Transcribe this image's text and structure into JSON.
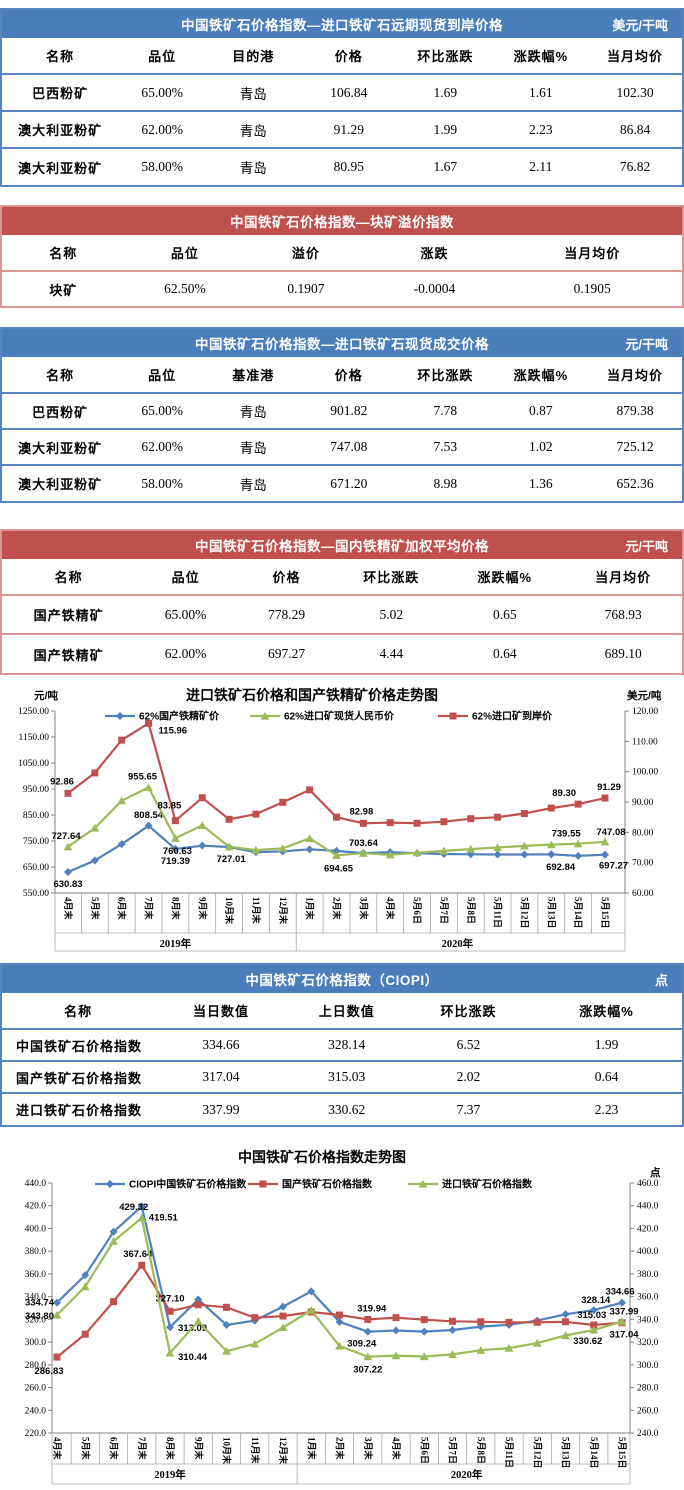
{
  "colors": {
    "blue_header": "#4A7EBB",
    "blue_border": "#5586BE",
    "red_header": "#C0504D",
    "red_border": "#D99694",
    "line_blue": "#4F81BD",
    "line_green": "#9BBB59",
    "line_red": "#C0504D",
    "label_green": "#00B050",
    "label_red": "#FF0000"
  },
  "tables": [
    {
      "theme": "blue",
      "title": "中国铁矿石价格指数—进口铁矿石远期现货到岸价格",
      "unit": "美元/干吨",
      "columns": [
        "名称",
        "品位",
        "目的港",
        "价格",
        "环比涨跌",
        "涨跌幅%",
        "当月均价"
      ],
      "rows": [
        [
          "巴西粉矿",
          "65.00%",
          "青岛",
          "106.84",
          "1.69",
          "1.61",
          "102.30"
        ],
        [
          "澳大利亚粉矿",
          "62.00%",
          "青岛",
          "91.29",
          "1.99",
          "2.23",
          "86.84"
        ],
        [
          "澳大利亚粉矿",
          "58.00%",
          "青岛",
          "80.95",
          "1.67",
          "2.11",
          "76.82"
        ]
      ]
    },
    {
      "theme": "red",
      "title": "中国铁矿石价格指数—块矿溢价指数",
      "unit": "",
      "columns": [
        "名称",
        "品位",
        "溢价",
        "涨跌",
        "当月均价"
      ],
      "rows": [
        [
          "块矿",
          "62.50%",
          "0.1907",
          "-0.0004",
          "0.1905"
        ]
      ]
    },
    {
      "theme": "blue",
      "title": "中国铁矿石价格指数—进口铁矿石现货成交价格",
      "unit": "元/干吨",
      "columns": [
        "名称",
        "品位",
        "基准港",
        "价格",
        "环比涨跌",
        "涨跌幅%",
        "当月均价"
      ],
      "rows": [
        [
          "巴西粉矿",
          "65.00%",
          "青岛",
          "901.82",
          "7.78",
          "0.87",
          "879.38"
        ],
        [
          "澳大利亚粉矿",
          "62.00%",
          "青岛",
          "747.08",
          "7.53",
          "1.02",
          "725.12"
        ],
        [
          "澳大利亚粉矿",
          "58.00%",
          "青岛",
          "671.20",
          "8.98",
          "1.36",
          "652.36"
        ]
      ]
    },
    {
      "theme": "red",
      "title": "中国铁矿石价格指数—国内铁精矿加权平均价格",
      "unit": "元/干吨",
      "columns": [
        "名称",
        "品位",
        "价格",
        "环比涨跌",
        "涨跌幅%",
        "当月均价"
      ],
      "rows": [
        [
          "国产铁精矿",
          "65.00%",
          "778.29",
          "5.02",
          "0.65",
          "768.93"
        ],
        [
          "国产铁精矿",
          "62.00%",
          "697.27",
          "4.44",
          "0.64",
          "689.10"
        ]
      ]
    },
    {
      "theme": "blue",
      "title": "中国铁矿石价格指数（CIOPI）",
      "unit": "点",
      "columns": [
        "名称",
        "当日数值",
        "上日数值",
        "环比涨跌",
        "涨跌幅%"
      ],
      "rows": [
        [
          "中国铁矿石价格指数",
          "334.66",
          "328.14",
          "6.52",
          "1.99"
        ],
        [
          "国产铁矿石价格指数",
          "317.04",
          "315.03",
          "2.02",
          "0.64"
        ],
        [
          "进口铁矿石价格指数",
          "337.99",
          "330.62",
          "7.37",
          "2.23"
        ]
      ]
    }
  ],
  "chart_data": [
    {
      "type": "line",
      "title": "进口铁矿石价格和国产铁精矿价格走势图",
      "grid": false,
      "legend_position": "top",
      "left_axis": {
        "unit": "元/吨",
        "min": 550,
        "max": 1250,
        "step": 100,
        "decimals": 2
      },
      "right_axis": {
        "unit": "美元/吨",
        "min": 60,
        "max": 120,
        "step": 10,
        "decimals": 2
      },
      "categories": [
        "4月末",
        "5月末",
        "6月末",
        "7月末",
        "8月末",
        "9月末",
        "10月末",
        "11月末",
        "12月末",
        "1月末",
        "2月末",
        "3月末",
        "4月末",
        "5月6日",
        "5月7日",
        "5月8日",
        "5月11日",
        "5月12日",
        "5月13日",
        "5月14日",
        "5月15日"
      ],
      "year_groups": [
        {
          "label": "2019年",
          "count": 9
        },
        {
          "label": "2020年",
          "count": 12
        }
      ],
      "series": [
        {
          "name": "62%国产铁精矿价",
          "axis": "left",
          "color": "#4F81BD",
          "label_color": "#4F81BD",
          "marker": "diamond",
          "values": [
            630.83,
            675,
            738,
            808.54,
            719.39,
            732,
            727.01,
            707,
            710,
            718,
            712,
            703.64,
            707,
            703,
            700,
            699,
            698,
            698,
            699,
            692.84,
            697.27
          ],
          "labels": [
            {
              "i": 0,
              "text": "630.83",
              "dx": 0,
              "dy": 15
            },
            {
              "i": 3,
              "text": "808.54",
              "dx": 0,
              "dy": -8
            },
            {
              "i": 4,
              "text": "719.39",
              "dx": 0,
              "dy": 15
            },
            {
              "i": 6,
              "text": "727.01",
              "dx": 2,
              "dy": 15
            },
            {
              "i": 11,
              "text": "703.64",
              "dx": 0,
              "dy": -7
            },
            {
              "i": 19,
              "text": "692.84",
              "dx": -3,
              "dy": 14,
              "anchor": "end"
            },
            {
              "i": 20,
              "text": "697.27",
              "dx": -6,
              "dy": 14,
              "anchor": "start"
            }
          ]
        },
        {
          "name": "62%进口矿现货人民币价",
          "axis": "left",
          "color": "#9BBB59",
          "label_color": "#00B050",
          "marker": "triangle",
          "values": [
            727.64,
            800,
            905,
            955.65,
            760.63,
            810,
            728,
            715,
            722,
            760,
            694.65,
            703,
            697,
            705,
            712,
            719,
            725,
            731,
            736,
            739.55,
            747.08
          ],
          "labels": [
            {
              "i": 0,
              "text": "727.64",
              "dx": -2,
              "dy": -8
            },
            {
              "i": 3,
              "text": "955.65",
              "dx": -6,
              "dy": -8
            },
            {
              "i": 4,
              "text": "760.63",
              "dx": 2,
              "dy": 16
            },
            {
              "i": 10,
              "text": "694.65",
              "dx": 2,
              "dy": 16
            },
            {
              "i": 19,
              "text": "739.55",
              "dx": -12,
              "dy": -7
            },
            {
              "i": 20,
              "text": "747.08",
              "dx": 6,
              "dy": -7
            }
          ]
        },
        {
          "name": "62%进口矿到岸价",
          "axis": "right",
          "color": "#C0504D",
          "label_color": "#FF0000",
          "marker": "square",
          "values": [
            92.86,
            99.6,
            110.4,
            115.96,
            83.85,
            91.4,
            84.3,
            86.0,
            89.9,
            94.0,
            85.0,
            82.98,
            83.2,
            83.0,
            83.5,
            84.5,
            85.0,
            86.2,
            88.0,
            89.3,
            91.29
          ],
          "labels": [
            {
              "i": 0,
              "text": "92.86",
              "dx": -6,
              "dy": -9
            },
            {
              "i": 3,
              "text": "115.96",
              "dx": 10,
              "dy": 10,
              "anchor": "start"
            },
            {
              "i": 4,
              "text": "83.85",
              "dx": -6,
              "dy": -12
            },
            {
              "i": 11,
              "text": "82.98",
              "dx": -2,
              "dy": -9
            },
            {
              "i": 19,
              "text": "89.30",
              "dx": -14,
              "dy": -8
            },
            {
              "i": 20,
              "text": "91.29",
              "dx": 4,
              "dy": -8
            }
          ]
        }
      ]
    },
    {
      "type": "line",
      "title": "中国铁矿石价格指数走势图",
      "grid": false,
      "legend_position": "top",
      "left_axis": {
        "unit": "",
        "min": 220,
        "max": 440,
        "step": 20,
        "decimals": 1
      },
      "right_axis": {
        "unit": "点",
        "min": 240,
        "max": 460,
        "step": 20,
        "decimals": 1
      },
      "categories": [
        "4月末",
        "5月末",
        "6月末",
        "7月末",
        "8月末",
        "9月末",
        "10月末",
        "11月末",
        "12月末",
        "1月末",
        "2月末",
        "3月末",
        "4月末",
        "5月6日",
        "5月7日",
        "5月8日",
        "5月11日",
        "5月12日",
        "5月13日",
        "5月14日",
        "5月15日"
      ],
      "year_groups": [
        {
          "label": "2019年",
          "count": 9
        },
        {
          "label": "2020年",
          "count": 12
        }
      ],
      "series": [
        {
          "name": "CIOPI中国铁矿石价格指数",
          "axis": "left",
          "color": "#4F81BD",
          "label_color": "#4F81BD",
          "marker": "diamond",
          "values": [
            334.74,
            358.9,
            397.1,
            419.51,
            313.09,
            337.5,
            315.1,
            318.9,
            331.2,
            344.6,
            317.8,
            309.24,
            310.2,
            309.2,
            310.6,
            313.6,
            315.2,
            318.9,
            324.5,
            328.14,
            334.66
          ],
          "labels": [
            {
              "i": 0,
              "text": "334.74",
              "dx": -3,
              "dy": 3,
              "anchor": "end"
            },
            {
              "i": 3,
              "text": "419.51",
              "dx": 7,
              "dy": 14,
              "anchor": "start"
            },
            {
              "i": 4,
              "text": "313.09",
              "dx": 8,
              "dy": 4,
              "anchor": "start"
            },
            {
              "i": 11,
              "text": "309.24",
              "dx": -6,
              "dy": 15
            },
            {
              "i": 19,
              "text": "328.14",
              "dx": 2,
              "dy": -7
            },
            {
              "i": 20,
              "text": "334.66",
              "dx": -2,
              "dy": -8
            }
          ]
        },
        {
          "name": "国产铁矿石价格指数",
          "axis": "left",
          "color": "#C0504D",
          "label_color": "#FF0000",
          "marker": "square",
          "values": [
            286.83,
            307.0,
            335.6,
            367.64,
            327.1,
            332.9,
            330.6,
            321.5,
            322.9,
            326.5,
            323.8,
            319.94,
            321.5,
            319.7,
            318.3,
            317.9,
            317.4,
            317.4,
            317.9,
            315.03,
            317.04
          ],
          "labels": [
            {
              "i": 0,
              "text": "286.83",
              "dx": -8,
              "dy": 17
            },
            {
              "i": 3,
              "text": "367.64",
              "dx": -4,
              "dy": -8
            },
            {
              "i": 4,
              "text": "327.10",
              "dx": 0,
              "dy": -10
            },
            {
              "i": 11,
              "text": "319.94",
              "dx": 4,
              "dy": -8
            },
            {
              "i": 19,
              "text": "315.03",
              "dx": -2,
              "dy": -7
            },
            {
              "i": 20,
              "text": "317.04",
              "dx": 2,
              "dy": 15
            }
          ]
        },
        {
          "name": "进口铁矿石价格指数",
          "axis": "right",
          "color": "#9BBB59",
          "label_color": "#00B050",
          "marker": "triangle",
          "values": [
            343.8,
            368.8,
            408.7,
            429.32,
            310.44,
            338.4,
            312.1,
            318.4,
            332.8,
            348.0,
            316.6,
            307.22,
            308.1,
            307.3,
            309.2,
            312.9,
            314.7,
            319.1,
            325.8,
            330.62,
            337.99
          ],
          "labels": [
            {
              "i": 0,
              "text": "343.80",
              "dx": -3,
              "dy": 4,
              "anchor": "end"
            },
            {
              "i": 3,
              "text": "429.32",
              "dx": -8,
              "dy": -8
            },
            {
              "i": 4,
              "text": "310.44",
              "dx": 8,
              "dy": 7,
              "anchor": "start"
            },
            {
              "i": 11,
              "text": "307.22",
              "dx": 0,
              "dy": 16
            },
            {
              "i": 19,
              "text": "330.62",
              "dx": -6,
              "dy": 14
            },
            {
              "i": 20,
              "text": "337.99",
              "dx": 2,
              "dy": -7
            }
          ]
        }
      ]
    }
  ]
}
